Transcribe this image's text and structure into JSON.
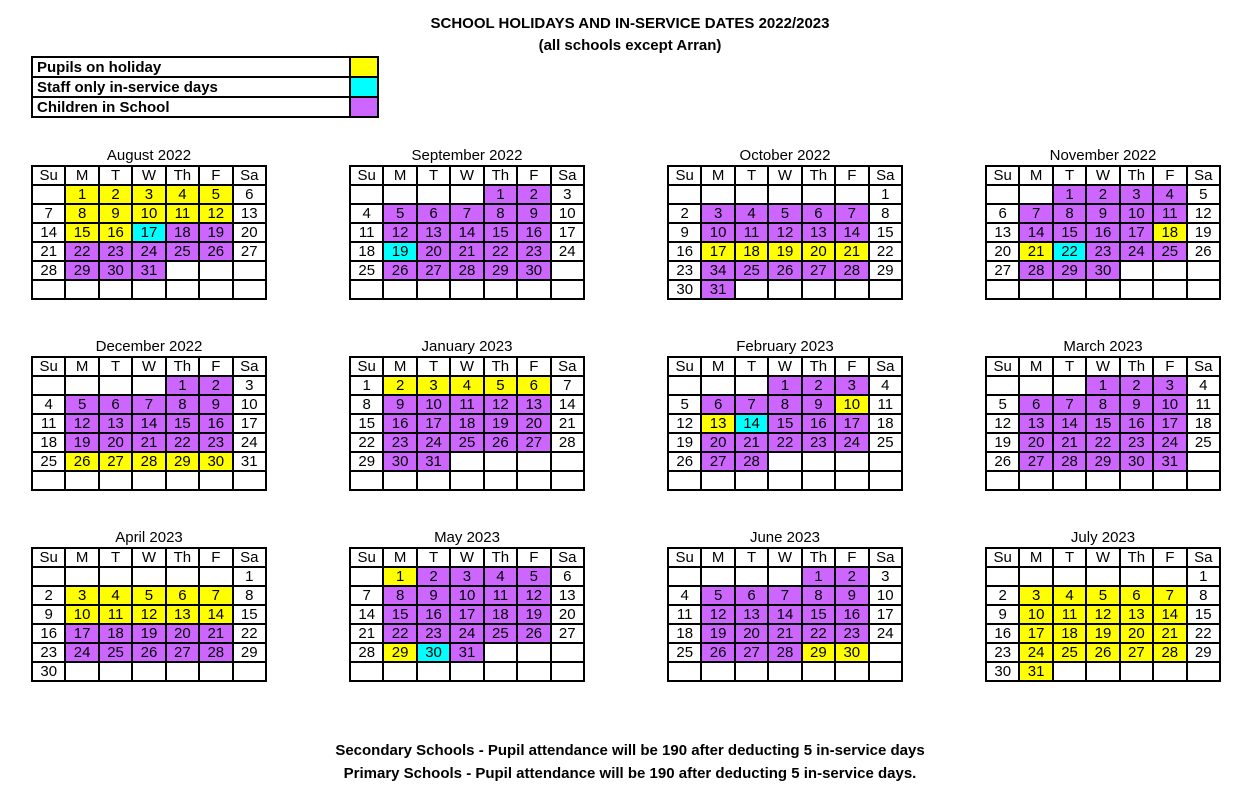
{
  "title": "SCHOOL HOLIDAYS AND IN-SERVICE DATES 2022/2023",
  "subtitle": "(all schools except Arran)",
  "legend": [
    {
      "label": "Pupils on holiday",
      "color": "#ffff00",
      "code": "y"
    },
    {
      "label": "Staff only in-service days",
      "color": "#00ffff",
      "code": "c"
    },
    {
      "label": "Children in School",
      "color": "#cc66ff",
      "code": "p"
    }
  ],
  "weekdays": [
    "Su",
    "M",
    "T",
    "W",
    "Th",
    "F",
    "Sa"
  ],
  "months": [
    {
      "name": "August 2022",
      "weeks": [
        [
          "",
          "1",
          "2",
          "3",
          "4",
          "5",
          "6"
        ],
        [
          "7",
          "8",
          "9",
          "10",
          "11",
          "12",
          "13"
        ],
        [
          "14",
          "15",
          "16",
          "17",
          "18",
          "19",
          "20"
        ],
        [
          "21",
          "22",
          "23",
          "24",
          "25",
          "26",
          "27"
        ],
        [
          "28",
          "29",
          "30",
          "31",
          "",
          "",
          ""
        ],
        [
          "",
          "",
          "",
          "",
          "",
          "",
          ""
        ]
      ],
      "status": [
        "-yyyyy-",
        "-yyyyy-",
        "-yycpp-",
        "-ppppp-",
        "-ppp---",
        "-------"
      ]
    },
    {
      "name": "September 2022",
      "weeks": [
        [
          "",
          "",
          "",
          "",
          "1",
          "2",
          "3"
        ],
        [
          "4",
          "5",
          "6",
          "7",
          "8",
          "9",
          "10"
        ],
        [
          "11",
          "12",
          "13",
          "14",
          "15",
          "16",
          "17"
        ],
        [
          "18",
          "19",
          "20",
          "21",
          "22",
          "23",
          "24"
        ],
        [
          "25",
          "26",
          "27",
          "28",
          "29",
          "30",
          ""
        ],
        [
          "",
          "",
          "",
          "",
          "",
          "",
          ""
        ]
      ],
      "status": [
        "----pp-",
        "-ppppp-",
        "-ppppp-",
        "-cpppp-",
        "-ppppp-",
        "-------"
      ]
    },
    {
      "name": "October 2022",
      "weeks": [
        [
          "",
          "",
          "",
          "",
          "",
          "",
          "1"
        ],
        [
          "2",
          "3",
          "4",
          "5",
          "6",
          "7",
          "8"
        ],
        [
          "9",
          "10",
          "11",
          "12",
          "13",
          "14",
          "15"
        ],
        [
          "16",
          "17",
          "18",
          "19",
          "20",
          "21",
          "22"
        ],
        [
          "23",
          "34",
          "25",
          "26",
          "27",
          "28",
          "29"
        ],
        [
          "30",
          "31",
          "",
          "",
          "",
          "",
          ""
        ]
      ],
      "status": [
        "-------",
        "-ppppp-",
        "-ppppp-",
        "-yyyyy-",
        "-ppppp-",
        "-p-----"
      ]
    },
    {
      "name": "November 2022",
      "weeks": [
        [
          "",
          "",
          "1",
          "2",
          "3",
          "4",
          "5"
        ],
        [
          "6",
          "7",
          "8",
          "9",
          "10",
          "11",
          "12"
        ],
        [
          "13",
          "14",
          "15",
          "16",
          "17",
          "18",
          "19"
        ],
        [
          "20",
          "21",
          "22",
          "23",
          "24",
          "25",
          "26"
        ],
        [
          "27",
          "28",
          "29",
          "30",
          "",
          "",
          ""
        ],
        [
          "",
          "",
          "",
          "",
          "",
          "",
          ""
        ]
      ],
      "status": [
        "--pppp-",
        "-ppppp-",
        "-ppppy-",
        "-ycppp-",
        "-ppp---",
        "-------"
      ]
    },
    {
      "name": "December 2022",
      "weeks": [
        [
          "",
          "",
          "",
          "",
          "1",
          "2",
          "3"
        ],
        [
          "4",
          "5",
          "6",
          "7",
          "8",
          "9",
          "10"
        ],
        [
          "11",
          "12",
          "13",
          "14",
          "15",
          "16",
          "17"
        ],
        [
          "18",
          "19",
          "20",
          "21",
          "22",
          "23",
          "24"
        ],
        [
          "25",
          "26",
          "27",
          "28",
          "29",
          "30",
          "31"
        ],
        [
          "",
          "",
          "",
          "",
          "",
          "",
          ""
        ]
      ],
      "status": [
        "----pp-",
        "-ppppp-",
        "-ppppp-",
        "-ppppp-",
        "-yyyyy-",
        "-------"
      ]
    },
    {
      "name": "January 2023",
      "weeks": [
        [
          "1",
          "2",
          "3",
          "4",
          "5",
          "6",
          "7"
        ],
        [
          "8",
          "9",
          "10",
          "11",
          "12",
          "13",
          "14"
        ],
        [
          "15",
          "16",
          "17",
          "18",
          "19",
          "20",
          "21"
        ],
        [
          "22",
          "23",
          "24",
          "25",
          "26",
          "27",
          "28"
        ],
        [
          "29",
          "30",
          "31",
          "",
          "",
          "",
          ""
        ],
        [
          "",
          "",
          "",
          "",
          "",
          "",
          ""
        ]
      ],
      "status": [
        "-yyyyy-",
        "-ppppp-",
        "-ppppp-",
        "-ppppp-",
        "-pp----",
        "-------"
      ]
    },
    {
      "name": "February 2023",
      "weeks": [
        [
          "",
          "",
          "",
          "1",
          "2",
          "3",
          "4"
        ],
        [
          "5",
          "6",
          "7",
          "8",
          "9",
          "10",
          "11"
        ],
        [
          "12",
          "13",
          "14",
          "15",
          "16",
          "17",
          "18"
        ],
        [
          "19",
          "20",
          "21",
          "22",
          "23",
          "24",
          "25"
        ],
        [
          "26",
          "27",
          "28",
          "",
          "",
          "",
          ""
        ],
        [
          "",
          "",
          "",
          "",
          "",
          "",
          ""
        ]
      ],
      "status": [
        "---ppp-",
        "-ppppy-",
        "-ycppp-",
        "-ppppp-",
        "-pp----",
        "-------"
      ]
    },
    {
      "name": "March 2023",
      "weeks": [
        [
          "",
          "",
          "",
          "1",
          "2",
          "3",
          "4"
        ],
        [
          "5",
          "6",
          "7",
          "8",
          "9",
          "10",
          "11"
        ],
        [
          "12",
          "13",
          "14",
          "15",
          "16",
          "17",
          "18"
        ],
        [
          "19",
          "20",
          "21",
          "22",
          "23",
          "24",
          "25"
        ],
        [
          "26",
          "27",
          "28",
          "29",
          "30",
          "31",
          ""
        ],
        [
          "",
          "",
          "",
          "",
          "",
          "",
          ""
        ]
      ],
      "status": [
        "---ppp-",
        "-ppppp-",
        "-ppppp-",
        "-ppppp-",
        "-ppppp-",
        "-------"
      ]
    },
    {
      "name": "April 2023",
      "weeks": [
        [
          "",
          "",
          "",
          "",
          "",
          "",
          "1"
        ],
        [
          "2",
          "3",
          "4",
          "5",
          "6",
          "7",
          "8"
        ],
        [
          "9",
          "10",
          "11",
          "12",
          "13",
          "14",
          "15"
        ],
        [
          "16",
          "17",
          "18",
          "19",
          "20",
          "21",
          "22"
        ],
        [
          "23",
          "24",
          "25",
          "26",
          "27",
          "28",
          "29"
        ],
        [
          "30",
          "",
          "",
          "",
          "",
          "",
          ""
        ]
      ],
      "status": [
        "-------",
        "-yyyyy-",
        "-yyyyy-",
        "-ppppp-",
        "-ppppp-",
        "-------"
      ]
    },
    {
      "name": "May 2023",
      "weeks": [
        [
          "",
          "1",
          "2",
          "3",
          "4",
          "5",
          "6"
        ],
        [
          "7",
          "8",
          "9",
          "10",
          "11",
          "12",
          "13"
        ],
        [
          "14",
          "15",
          "16",
          "17",
          "18",
          "19",
          "20"
        ],
        [
          "21",
          "22",
          "23",
          "24",
          "25",
          "26",
          "27"
        ],
        [
          "28",
          "29",
          "30",
          "31",
          "",
          "",
          ""
        ],
        [
          "",
          "",
          "",
          "",
          "",
          "",
          ""
        ]
      ],
      "status": [
        "-ypppp-",
        "-ppppp-",
        "-ppppp-",
        "-ppppp-",
        "-ycp---",
        "-------"
      ]
    },
    {
      "name": "June 2023",
      "weeks": [
        [
          "",
          "",
          "",
          "",
          "1",
          "2",
          "3"
        ],
        [
          "4",
          "5",
          "6",
          "7",
          "8",
          "9",
          "10"
        ],
        [
          "11",
          "12",
          "13",
          "14",
          "15",
          "16",
          "17"
        ],
        [
          "18",
          "19",
          "20",
          "21",
          "22",
          "23",
          "24"
        ],
        [
          "25",
          "26",
          "27",
          "28",
          "29",
          "30",
          ""
        ],
        [
          "",
          "",
          "",
          "",
          "",
          "",
          ""
        ]
      ],
      "status": [
        "----pp-",
        "-ppppp-",
        "-ppppp-",
        "-ppppp-",
        "-pppyy-",
        "-------"
      ]
    },
    {
      "name": "July 2023",
      "weeks": [
        [
          "",
          "",
          "",
          "",
          "",
          "",
          "1"
        ],
        [
          "2",
          "3",
          "4",
          "5",
          "6",
          "7",
          "8"
        ],
        [
          "9",
          "10",
          "11",
          "12",
          "13",
          "14",
          "15"
        ],
        [
          "16",
          "17",
          "18",
          "19",
          "20",
          "21",
          "22"
        ],
        [
          "23",
          "24",
          "25",
          "26",
          "27",
          "28",
          "29"
        ],
        [
          "30",
          "31",
          "",
          "",
          "",
          "",
          ""
        ]
      ],
      "status": [
        "-------",
        "-yyyyy-",
        "-yyyyy-",
        "-yyyyy-",
        "-yyyyy-",
        "-y-----"
      ]
    }
  ],
  "footer": [
    "Secondary Schools - Pupil attendance will be 190 after deducting 5 in-service days",
    "Primary Schools - Pupil attendance will be 190 after deducting 5 in-service days."
  ]
}
